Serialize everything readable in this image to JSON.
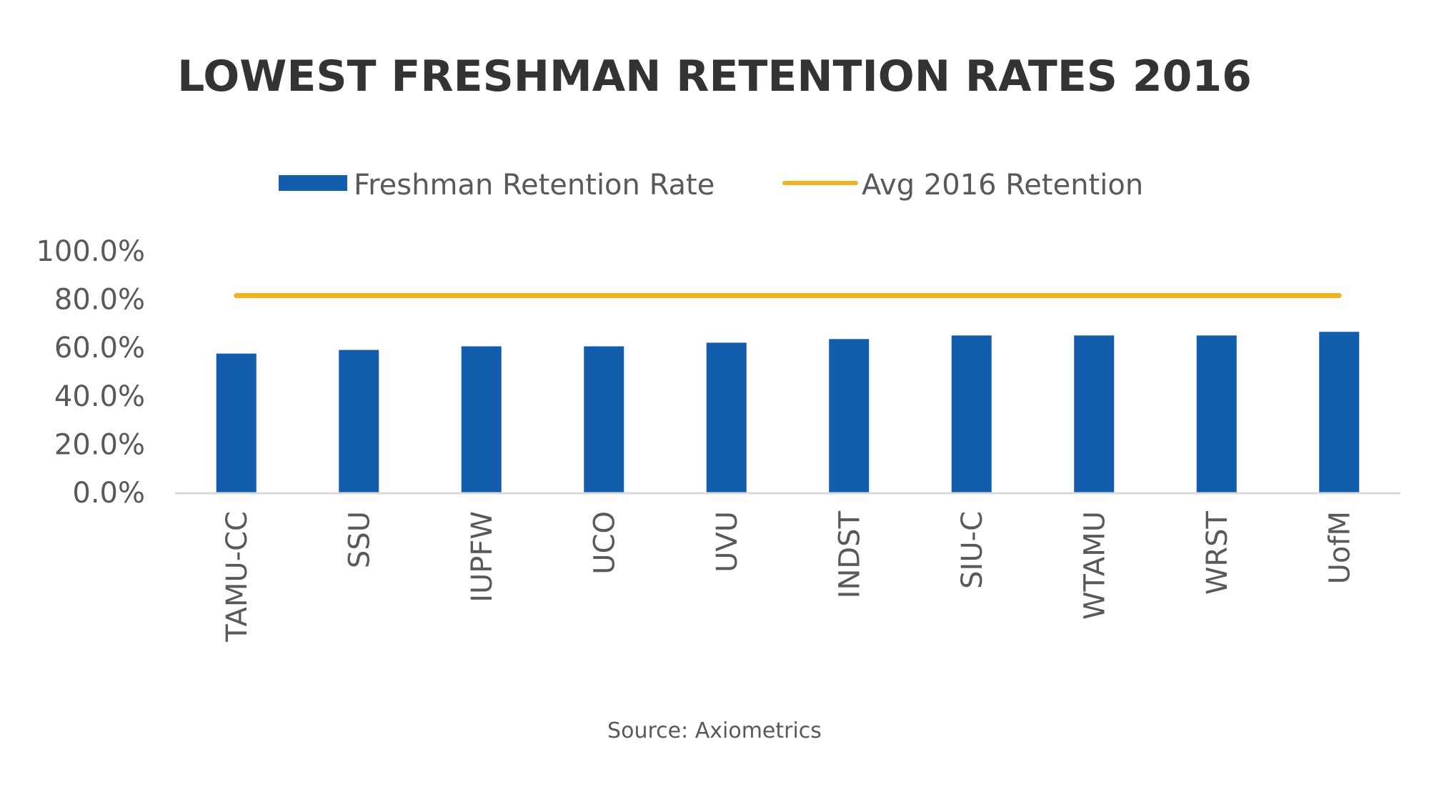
{
  "chart_data": {
    "type": "bar",
    "title": "LOWEST FRESHMAN RETENTION RATES 2016",
    "categories": [
      "TAMU-CC",
      "SSU",
      "IUPFW",
      "UCO",
      "UVU",
      "INDST",
      "SIU-C",
      "WTAMU",
      "WRST",
      "UofM"
    ],
    "series": [
      {
        "name": "Freshman Retention Rate",
        "type": "bar",
        "color": "#125EAC",
        "values": [
          57.5,
          59.0,
          60.5,
          60.5,
          62.0,
          63.5,
          65.0,
          65.0,
          65.0,
          66.5
        ]
      },
      {
        "name": "Avg 2016 Retention",
        "type": "line",
        "color": "#F0B323",
        "values": [
          81.5,
          81.5,
          81.5,
          81.5,
          81.5,
          81.5,
          81.5,
          81.5,
          81.5,
          81.5
        ]
      }
    ],
    "ylim": [
      0,
      100
    ],
    "yticks": [
      "0.0%",
      "20.0%",
      "40.0%",
      "60.0%",
      "80.0%",
      "100.0%"
    ],
    "grid": false,
    "legend_position": "top-center",
    "xlabel": "",
    "ylabel": ""
  },
  "source": "Source: Axiometrics"
}
